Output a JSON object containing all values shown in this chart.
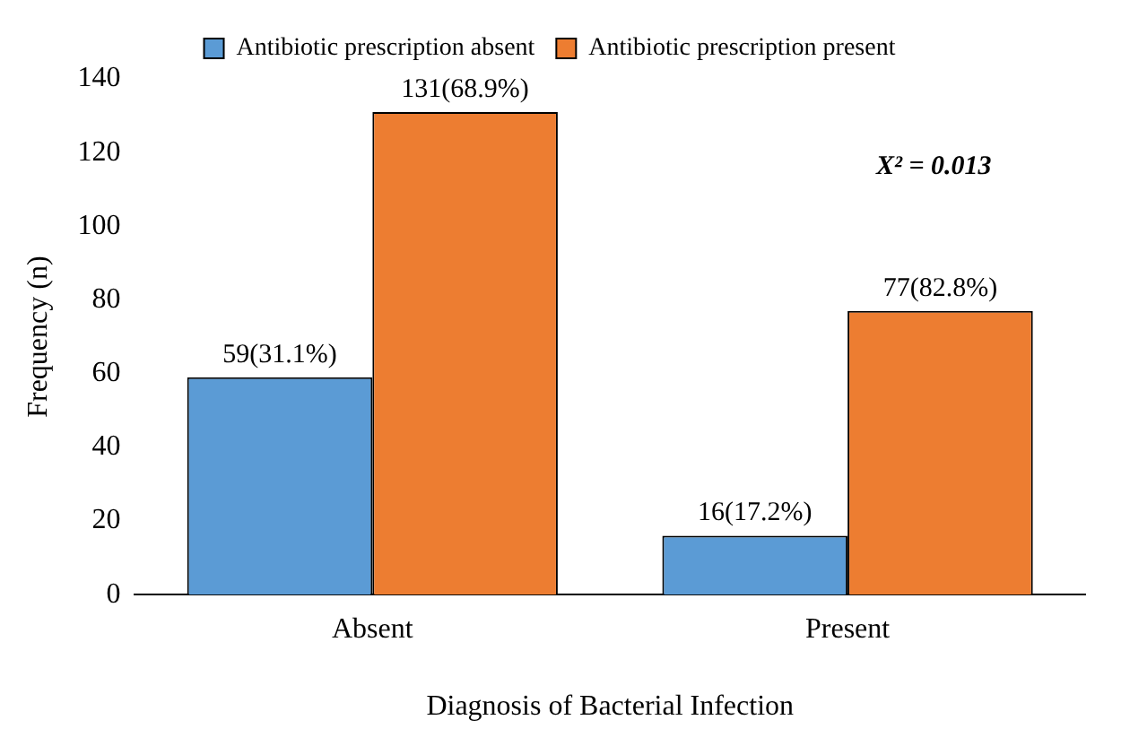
{
  "chart_data": {
    "type": "bar",
    "xlabel": "Diagnosis of Bacterial Infection",
    "ylabel": "Frequency (n)",
    "categories": [
      "Absent",
      "Present"
    ],
    "series": [
      {
        "name": "Antibiotic prescription absent",
        "color": "#5b9bd5",
        "values": [
          59,
          16
        ],
        "value_labels": [
          "59(31.1%)",
          "16(17.2%)"
        ]
      },
      {
        "name": "Antibiotic prescription present",
        "color": "#ed7d31",
        "values": [
          131,
          77
        ],
        "value_labels": [
          "131(68.9%)",
          "77(82.8%)"
        ]
      }
    ],
    "ylim": [
      0,
      140
    ],
    "yticks": [
      0,
      20,
      40,
      60,
      80,
      100,
      120,
      140
    ],
    "grid": false,
    "legend": "top",
    "annotations": [
      "X² = 0.013"
    ]
  }
}
